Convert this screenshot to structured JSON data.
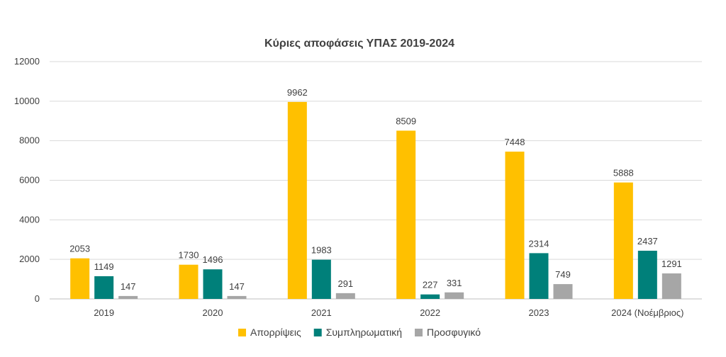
{
  "chart_data": {
    "type": "bar",
    "title": "Κύριες αποφάσεις ΥΠΑΣ 2019-2024",
    "xlabel": "",
    "ylabel": "",
    "categories": [
      "2019",
      "2020",
      "2021",
      "2022",
      "2023",
      "2024 (Νοέμβριος)"
    ],
    "series": [
      {
        "name": "Απορρίψεις",
        "color": "#FFC000",
        "values": [
          2053,
          1730,
          9962,
          8509,
          7448,
          5888
        ]
      },
      {
        "name": "Συμπληρωματική",
        "color": "#00807A",
        "values": [
          1149,
          1496,
          1983,
          227,
          2314,
          2437
        ]
      },
      {
        "name": "Προσφυγικό",
        "color": "#A6A6A6",
        "values": [
          147,
          147,
          291,
          331,
          749,
          1291
        ]
      }
    ],
    "ylim": [
      0,
      12000
    ],
    "yticks": [
      "0",
      "2000",
      "4000",
      "6000",
      "8000",
      "10000",
      "12000"
    ],
    "grid": true,
    "legend_position": "bottom"
  }
}
